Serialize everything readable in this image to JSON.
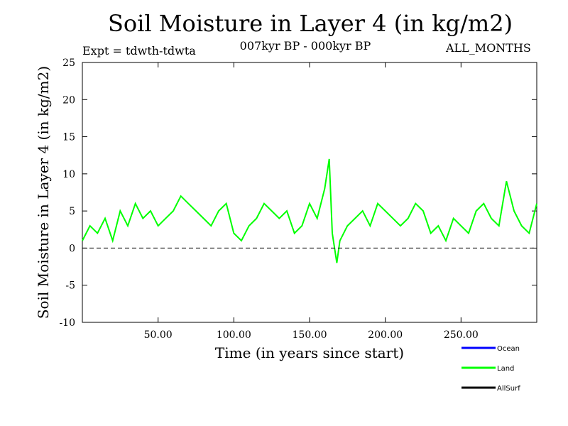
{
  "chart_data": {
    "type": "line",
    "title": "Soil Moisture in Layer 4 (in kg/m2)",
    "experiment": "Expt = tdwth-tdwta",
    "period": "007kyr BP - 000kyr BP",
    "months": "ALL_MONTHS",
    "xlabel": "Time (in years since start)",
    "ylabel": "Soil Moisture in Layer 4 (in kg/m2)",
    "xlim": [
      0,
      300
    ],
    "ylim": [
      -10,
      25
    ],
    "xticks": [
      50,
      100,
      150,
      200,
      250
    ],
    "xtick_labels": [
      "50.00",
      "100.00",
      "150.00",
      "200.00",
      "250.00"
    ],
    "yticks": [
      -10,
      -5,
      0,
      5,
      10,
      15,
      20,
      25
    ],
    "ytick_labels": [
      "-10",
      "-5",
      "0",
      "5",
      "10",
      "15",
      "20",
      "25"
    ],
    "zero_line": true,
    "legend": [
      {
        "name": "Ocean",
        "color": "#0000ff"
      },
      {
        "name": "Land",
        "color": "#00ff00"
      },
      {
        "name": "AllSurf",
        "color": "#000000"
      }
    ],
    "series": [
      {
        "name": "Land",
        "color": "#00ff00",
        "x": [
          0,
          5,
          10,
          15,
          20,
          25,
          30,
          35,
          40,
          45,
          50,
          55,
          60,
          65,
          70,
          75,
          80,
          85,
          90,
          95,
          100,
          105,
          110,
          115,
          120,
          125,
          130,
          135,
          140,
          145,
          150,
          155,
          160,
          163,
          165,
          168,
          170,
          175,
          180,
          185,
          190,
          195,
          200,
          205,
          210,
          215,
          220,
          225,
          230,
          235,
          240,
          245,
          250,
          255,
          260,
          265,
          270,
          275,
          280,
          285,
          290,
          295,
          300
        ],
        "values": [
          1,
          3,
          2,
          4,
          1,
          5,
          3,
          6,
          4,
          5,
          3,
          4,
          5,
          7,
          6,
          5,
          4,
          3,
          5,
          6,
          2,
          1,
          3,
          4,
          6,
          5,
          4,
          5,
          2,
          3,
          6,
          4,
          8,
          12,
          2,
          -2,
          1,
          3,
          4,
          5,
          3,
          6,
          5,
          4,
          3,
          4,
          6,
          5,
          2,
          3,
          1,
          4,
          3,
          2,
          5,
          6,
          4,
          3,
          9,
          5,
          3,
          2,
          6
        ]
      }
    ]
  }
}
